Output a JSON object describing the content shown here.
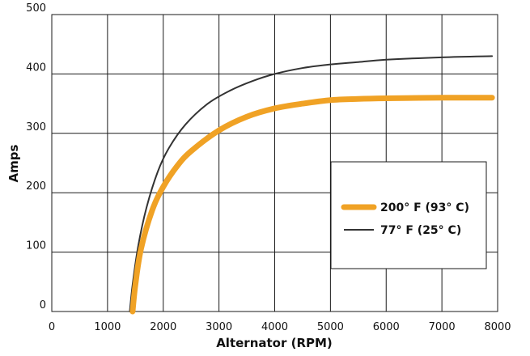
{
  "chart_data": {
    "type": "line",
    "title": "",
    "xlabel": "Alternator (RPM)",
    "ylabel": "Amps",
    "xlim": [
      0,
      8000
    ],
    "ylim": [
      0,
      500
    ],
    "x_ticks": [
      0,
      1000,
      2000,
      3000,
      4000,
      5000,
      6000,
      7000,
      8000
    ],
    "y_ticks": [
      0,
      100,
      200,
      300,
      400,
      500
    ],
    "grid": true,
    "legend_position": "right-middle",
    "series": [
      {
        "name": "200° F (93° C)",
        "color": "#f0a225",
        "x": [
          1450,
          1500,
          1600,
          1800,
          2000,
          2250,
          2500,
          3000,
          3500,
          4000,
          4500,
          5000,
          5500,
          6000,
          7000,
          7900
        ],
        "y": [
          0,
          45,
          105,
          170,
          210,
          245,
          270,
          305,
          328,
          342,
          350,
          356,
          358,
          359,
          360,
          360
        ]
      },
      {
        "name": "77° F (25° C)",
        "color": "#333333",
        "x": [
          1400,
          1450,
          1550,
          1700,
          1900,
          2100,
          2400,
          2800,
          3200,
          3600,
          4000,
          4500,
          5000,
          5500,
          6000,
          7000,
          7900
        ],
        "y": [
          0,
          45,
          110,
          175,
          235,
          275,
          315,
          350,
          372,
          388,
          400,
          410,
          416,
          420,
          424,
          428,
          430
        ]
      }
    ]
  }
}
